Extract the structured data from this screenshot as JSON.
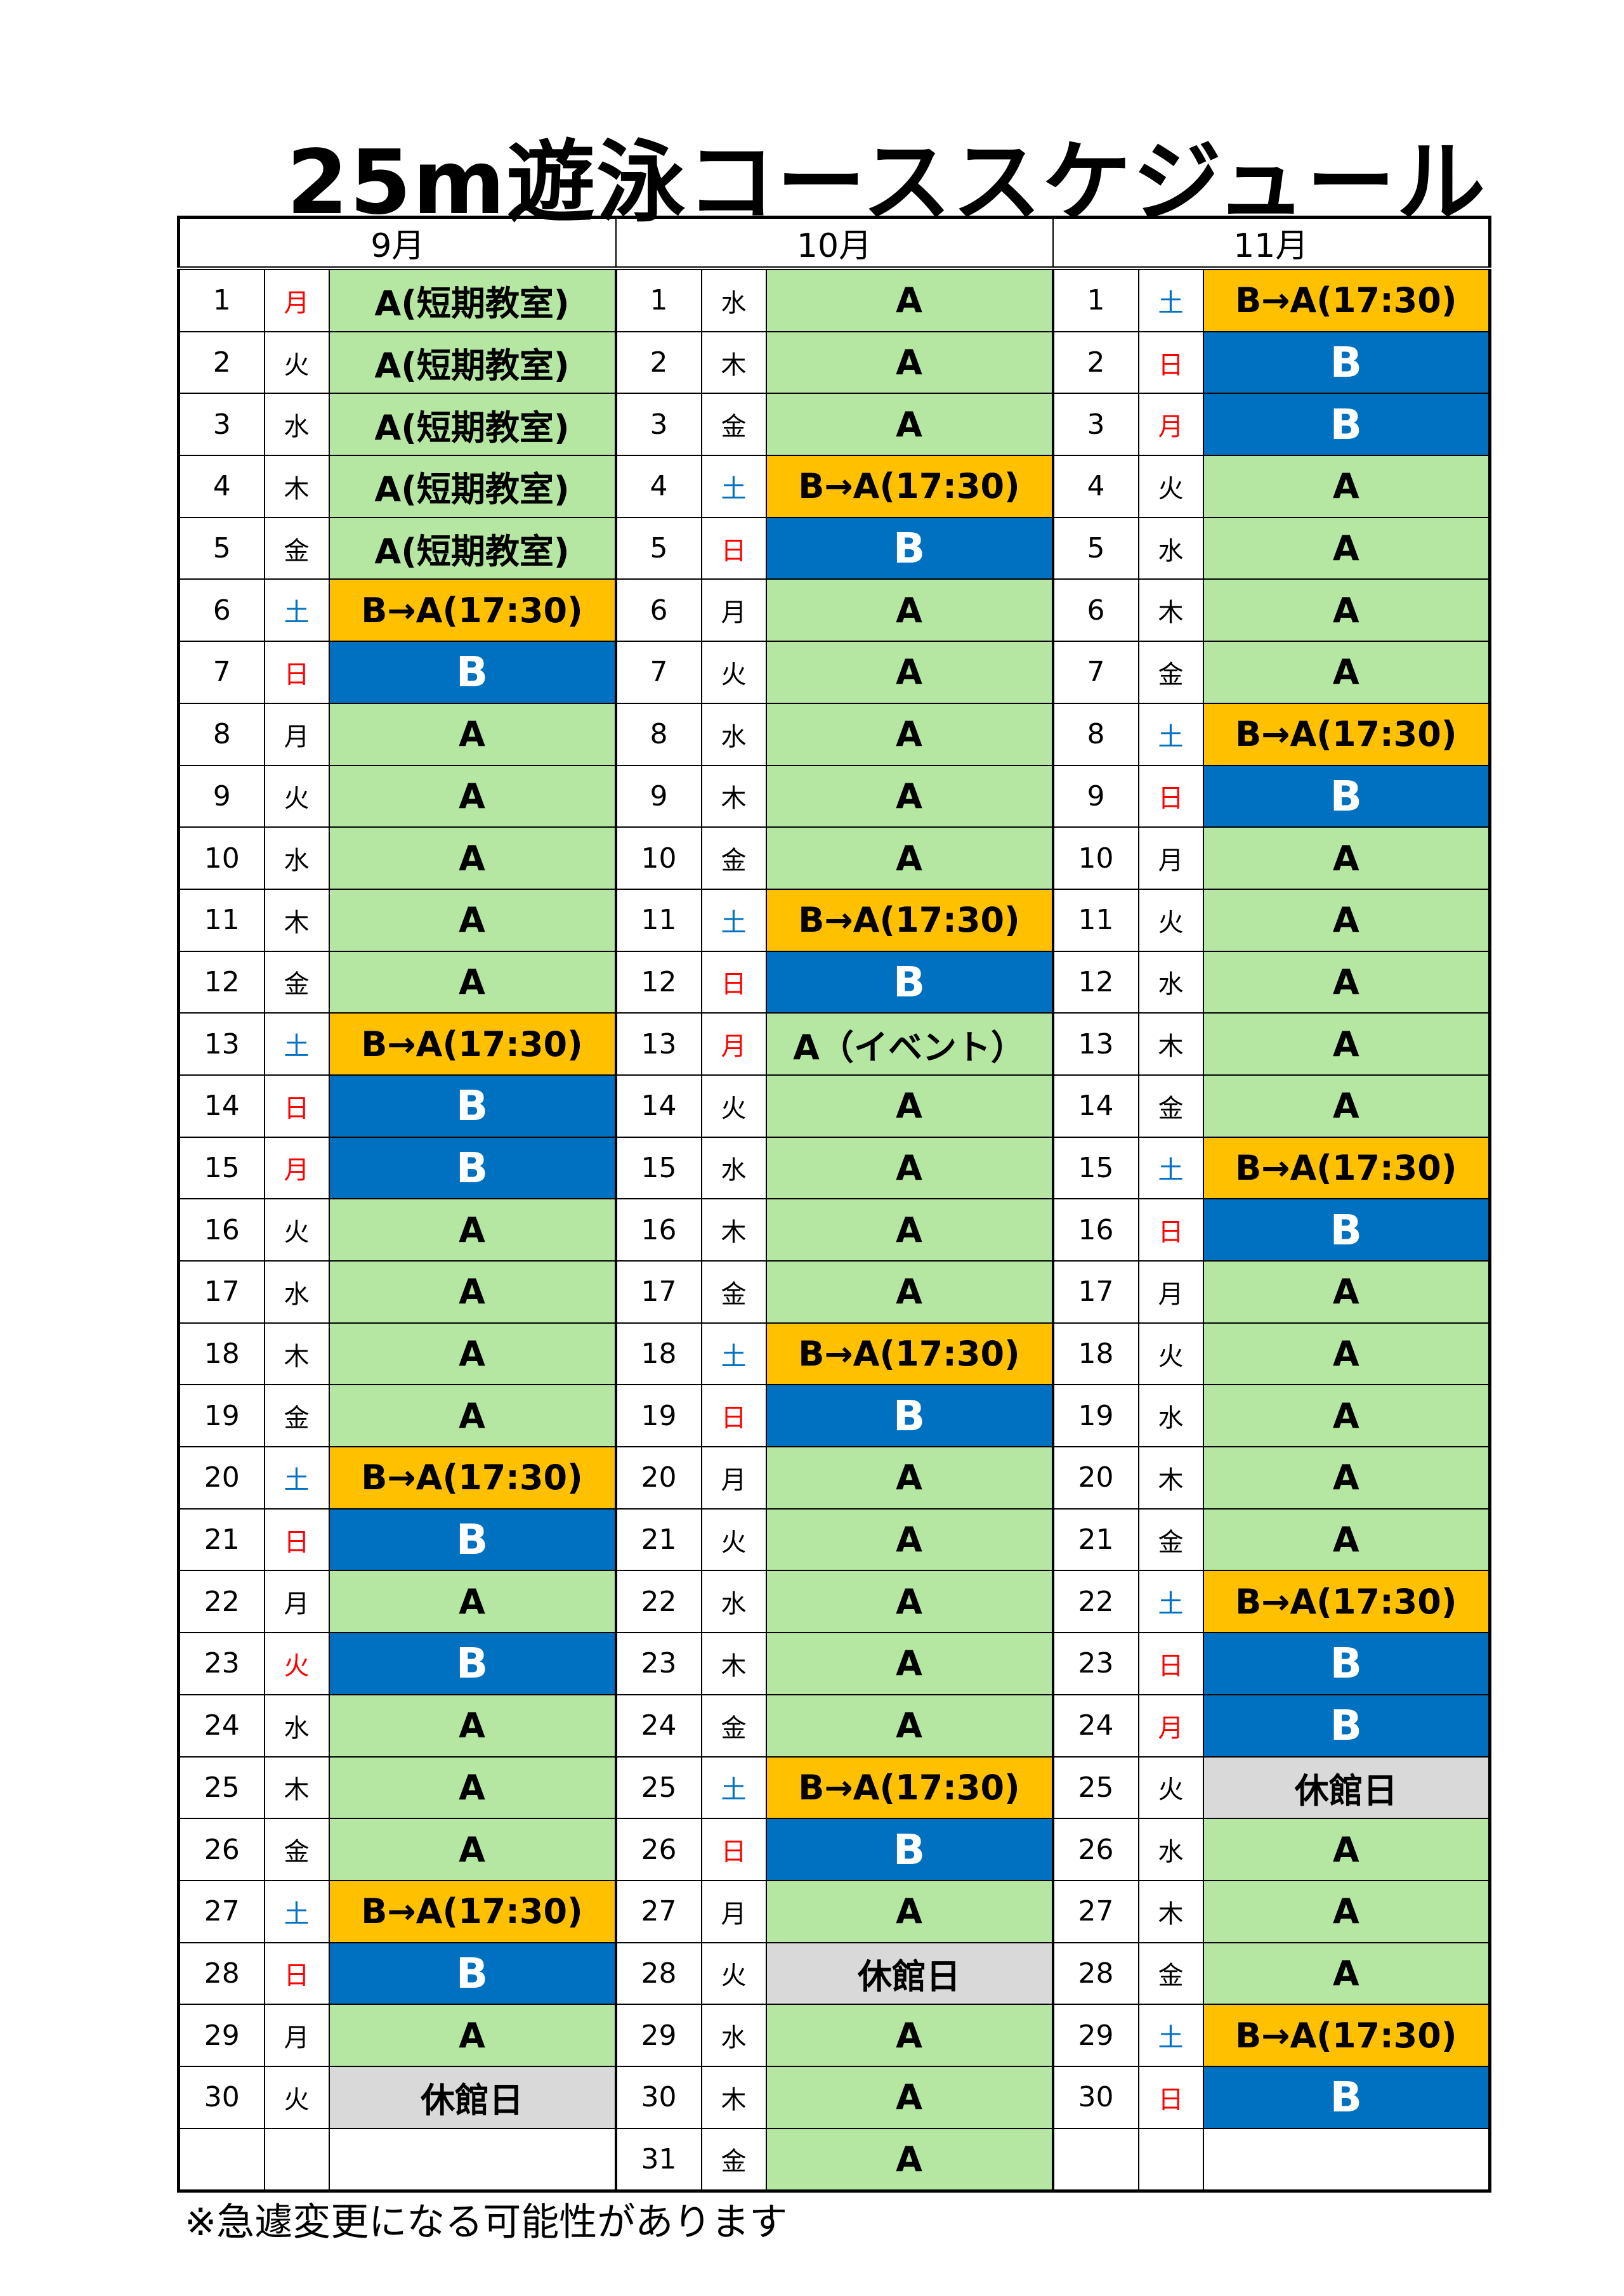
{
  "title": "25m遊泳コーススケジュール",
  "footnote": "※急遽変更になる可能性があります",
  "colors": {
    "green": "#b5e6a2",
    "blue": "#0070c0",
    "orange": "#ffc000",
    "gray": "#d9d9d9",
    "white": "#ffffff",
    "red": "#ff0000",
    "sat": "#0070c0",
    "black": "#000000"
  },
  "months": [
    {
      "name": "9月",
      "days": [
        {
          "d": "1",
          "w": "月",
          "wc": "red",
          "s": "A(短期教室)",
          "t": "green"
        },
        {
          "d": "2",
          "w": "火",
          "wc": "black",
          "s": "A(短期教室)",
          "t": "green"
        },
        {
          "d": "3",
          "w": "水",
          "wc": "black",
          "s": "A(短期教室)",
          "t": "green"
        },
        {
          "d": "4",
          "w": "木",
          "wc": "black",
          "s": "A(短期教室)",
          "t": "green"
        },
        {
          "d": "5",
          "w": "金",
          "wc": "black",
          "s": "A(短期教室)",
          "t": "green"
        },
        {
          "d": "6",
          "w": "土",
          "wc": "sat",
          "s": "B→A(17:30)",
          "t": "orange"
        },
        {
          "d": "7",
          "w": "日",
          "wc": "red",
          "s": "B",
          "t": "blue"
        },
        {
          "d": "8",
          "w": "月",
          "wc": "black",
          "s": "A",
          "t": "green"
        },
        {
          "d": "9",
          "w": "火",
          "wc": "black",
          "s": "A",
          "t": "green"
        },
        {
          "d": "10",
          "w": "水",
          "wc": "black",
          "s": "A",
          "t": "green"
        },
        {
          "d": "11",
          "w": "木",
          "wc": "black",
          "s": "A",
          "t": "green"
        },
        {
          "d": "12",
          "w": "金",
          "wc": "black",
          "s": "A",
          "t": "green"
        },
        {
          "d": "13",
          "w": "土",
          "wc": "sat",
          "s": "B→A(17:30)",
          "t": "orange"
        },
        {
          "d": "14",
          "w": "日",
          "wc": "red",
          "s": "B",
          "t": "blue"
        },
        {
          "d": "15",
          "w": "月",
          "wc": "red",
          "s": "B",
          "t": "blue"
        },
        {
          "d": "16",
          "w": "火",
          "wc": "black",
          "s": "A",
          "t": "green"
        },
        {
          "d": "17",
          "w": "水",
          "wc": "black",
          "s": "A",
          "t": "green"
        },
        {
          "d": "18",
          "w": "木",
          "wc": "black",
          "s": "A",
          "t": "green"
        },
        {
          "d": "19",
          "w": "金",
          "wc": "black",
          "s": "A",
          "t": "green"
        },
        {
          "d": "20",
          "w": "土",
          "wc": "sat",
          "s": "B→A(17:30)",
          "t": "orange"
        },
        {
          "d": "21",
          "w": "日",
          "wc": "red",
          "s": "B",
          "t": "blue"
        },
        {
          "d": "22",
          "w": "月",
          "wc": "black",
          "s": "A",
          "t": "green"
        },
        {
          "d": "23",
          "w": "火",
          "wc": "red",
          "s": "B",
          "t": "blue"
        },
        {
          "d": "24",
          "w": "水",
          "wc": "black",
          "s": "A",
          "t": "green"
        },
        {
          "d": "25",
          "w": "木",
          "wc": "black",
          "s": "A",
          "t": "green"
        },
        {
          "d": "26",
          "w": "金",
          "wc": "black",
          "s": "A",
          "t": "green"
        },
        {
          "d": "27",
          "w": "土",
          "wc": "sat",
          "s": "B→A(17:30)",
          "t": "orange"
        },
        {
          "d": "28",
          "w": "日",
          "wc": "red",
          "s": "B",
          "t": "blue"
        },
        {
          "d": "29",
          "w": "月",
          "wc": "black",
          "s": "A",
          "t": "green"
        },
        {
          "d": "30",
          "w": "火",
          "wc": "black",
          "s": "休館日",
          "t": "gray"
        },
        {
          "d": "",
          "w": "",
          "wc": "black",
          "s": "",
          "t": "white"
        }
      ]
    },
    {
      "name": "10月",
      "days": [
        {
          "d": "1",
          "w": "水",
          "wc": "black",
          "s": "A",
          "t": "green"
        },
        {
          "d": "2",
          "w": "木",
          "wc": "black",
          "s": "A",
          "t": "green"
        },
        {
          "d": "3",
          "w": "金",
          "wc": "black",
          "s": "A",
          "t": "green"
        },
        {
          "d": "4",
          "w": "土",
          "wc": "sat",
          "s": "B→A(17:30)",
          "t": "orange"
        },
        {
          "d": "5",
          "w": "日",
          "wc": "red",
          "s": "B",
          "t": "blue"
        },
        {
          "d": "6",
          "w": "月",
          "wc": "black",
          "s": "A",
          "t": "green"
        },
        {
          "d": "7",
          "w": "火",
          "wc": "black",
          "s": "A",
          "t": "green"
        },
        {
          "d": "8",
          "w": "水",
          "wc": "black",
          "s": "A",
          "t": "green"
        },
        {
          "d": "9",
          "w": "木",
          "wc": "black",
          "s": "A",
          "t": "green"
        },
        {
          "d": "10",
          "w": "金",
          "wc": "black",
          "s": "A",
          "t": "green"
        },
        {
          "d": "11",
          "w": "土",
          "wc": "sat",
          "s": "B→A(17:30)",
          "t": "orange"
        },
        {
          "d": "12",
          "w": "日",
          "wc": "red",
          "s": "B",
          "t": "blue"
        },
        {
          "d": "13",
          "w": "月",
          "wc": "red",
          "s": "A（イベント）",
          "t": "green"
        },
        {
          "d": "14",
          "w": "火",
          "wc": "black",
          "s": "A",
          "t": "green"
        },
        {
          "d": "15",
          "w": "水",
          "wc": "black",
          "s": "A",
          "t": "green"
        },
        {
          "d": "16",
          "w": "木",
          "wc": "black",
          "s": "A",
          "t": "green"
        },
        {
          "d": "17",
          "w": "金",
          "wc": "black",
          "s": "A",
          "t": "green"
        },
        {
          "d": "18",
          "w": "土",
          "wc": "sat",
          "s": "B→A(17:30)",
          "t": "orange"
        },
        {
          "d": "19",
          "w": "日",
          "wc": "red",
          "s": "B",
          "t": "blue"
        },
        {
          "d": "20",
          "w": "月",
          "wc": "black",
          "s": "A",
          "t": "green"
        },
        {
          "d": "21",
          "w": "火",
          "wc": "black",
          "s": "A",
          "t": "green"
        },
        {
          "d": "22",
          "w": "水",
          "wc": "black",
          "s": "A",
          "t": "green"
        },
        {
          "d": "23",
          "w": "木",
          "wc": "black",
          "s": "A",
          "t": "green"
        },
        {
          "d": "24",
          "w": "金",
          "wc": "black",
          "s": "A",
          "t": "green"
        },
        {
          "d": "25",
          "w": "土",
          "wc": "sat",
          "s": "B→A(17:30)",
          "t": "orange"
        },
        {
          "d": "26",
          "w": "日",
          "wc": "red",
          "s": "B",
          "t": "blue"
        },
        {
          "d": "27",
          "w": "月",
          "wc": "black",
          "s": "A",
          "t": "green"
        },
        {
          "d": "28",
          "w": "火",
          "wc": "black",
          "s": "休館日",
          "t": "gray"
        },
        {
          "d": "29",
          "w": "水",
          "wc": "black",
          "s": "A",
          "t": "green"
        },
        {
          "d": "30",
          "w": "木",
          "wc": "black",
          "s": "A",
          "t": "green"
        },
        {
          "d": "31",
          "w": "金",
          "wc": "black",
          "s": "A",
          "t": "green"
        }
      ]
    },
    {
      "name": "11月",
      "days": [
        {
          "d": "1",
          "w": "土",
          "wc": "sat",
          "s": "B→A(17:30)",
          "t": "orange"
        },
        {
          "d": "2",
          "w": "日",
          "wc": "red",
          "s": "B",
          "t": "blue"
        },
        {
          "d": "3",
          "w": "月",
          "wc": "red",
          "s": "B",
          "t": "blue"
        },
        {
          "d": "4",
          "w": "火",
          "wc": "black",
          "s": "A",
          "t": "green"
        },
        {
          "d": "5",
          "w": "水",
          "wc": "black",
          "s": "A",
          "t": "green"
        },
        {
          "d": "6",
          "w": "木",
          "wc": "black",
          "s": "A",
          "t": "green"
        },
        {
          "d": "7",
          "w": "金",
          "wc": "black",
          "s": "A",
          "t": "green"
        },
        {
          "d": "8",
          "w": "土",
          "wc": "sat",
          "s": "B→A(17:30)",
          "t": "orange"
        },
        {
          "d": "9",
          "w": "日",
          "wc": "red",
          "s": "B",
          "t": "blue"
        },
        {
          "d": "10",
          "w": "月",
          "wc": "black",
          "s": "A",
          "t": "green"
        },
        {
          "d": "11",
          "w": "火",
          "wc": "black",
          "s": "A",
          "t": "green"
        },
        {
          "d": "12",
          "w": "水",
          "wc": "black",
          "s": "A",
          "t": "green"
        },
        {
          "d": "13",
          "w": "木",
          "wc": "black",
          "s": "A",
          "t": "green"
        },
        {
          "d": "14",
          "w": "金",
          "wc": "black",
          "s": "A",
          "t": "green"
        },
        {
          "d": "15",
          "w": "土",
          "wc": "sat",
          "s": "B→A(17:30)",
          "t": "orange"
        },
        {
          "d": "16",
          "w": "日",
          "wc": "red",
          "s": "B",
          "t": "blue"
        },
        {
          "d": "17",
          "w": "月",
          "wc": "black",
          "s": "A",
          "t": "green"
        },
        {
          "d": "18",
          "w": "火",
          "wc": "black",
          "s": "A",
          "t": "green"
        },
        {
          "d": "19",
          "w": "水",
          "wc": "black",
          "s": "A",
          "t": "green"
        },
        {
          "d": "20",
          "w": "木",
          "wc": "black",
          "s": "A",
          "t": "green"
        },
        {
          "d": "21",
          "w": "金",
          "wc": "black",
          "s": "A",
          "t": "green"
        },
        {
          "d": "22",
          "w": "土",
          "wc": "sat",
          "s": "B→A(17:30)",
          "t": "orange"
        },
        {
          "d": "23",
          "w": "日",
          "wc": "red",
          "s": "B",
          "t": "blue"
        },
        {
          "d": "24",
          "w": "月",
          "wc": "red",
          "s": "B",
          "t": "blue"
        },
        {
          "d": "25",
          "w": "火",
          "wc": "black",
          "s": "休館日",
          "t": "gray"
        },
        {
          "d": "26",
          "w": "水",
          "wc": "black",
          "s": "A",
          "t": "green"
        },
        {
          "d": "27",
          "w": "木",
          "wc": "black",
          "s": "A",
          "t": "green"
        },
        {
          "d": "28",
          "w": "金",
          "wc": "black",
          "s": "A",
          "t": "green"
        },
        {
          "d": "29",
          "w": "土",
          "wc": "sat",
          "s": "B→A(17:30)",
          "t": "orange"
        },
        {
          "d": "30",
          "w": "日",
          "wc": "red",
          "s": "B",
          "t": "blue"
        },
        {
          "d": "",
          "w": "",
          "wc": "black",
          "s": "",
          "t": "white"
        }
      ]
    }
  ]
}
